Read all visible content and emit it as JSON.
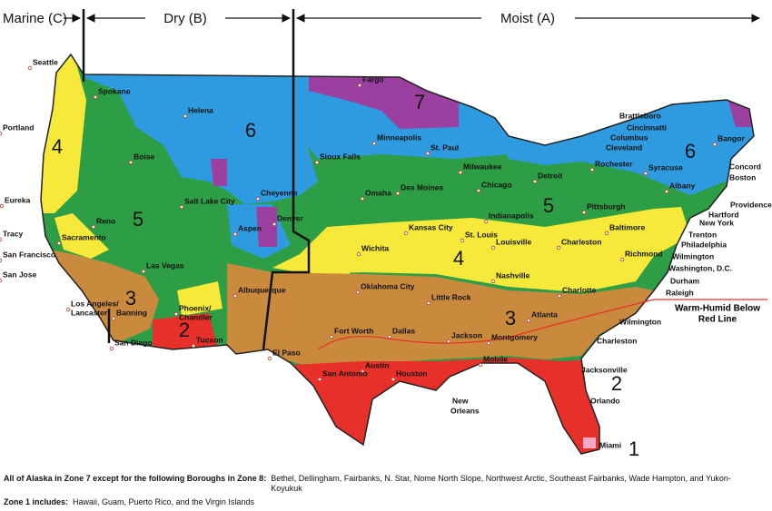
{
  "header": {
    "marine": "Marine (C)",
    "dry": "Dry (B)",
    "moist": "Moist (A)"
  },
  "zone_labels": [
    "7",
    "6",
    "6",
    "5",
    "5",
    "4",
    "4",
    "3",
    "3",
    "2",
    "2",
    "1"
  ],
  "cities": [
    "Seattle",
    "Portland",
    "Eureka",
    "Tracy",
    "San Francisco",
    "San Jose",
    "Sacramento",
    "Reno",
    "Spokane",
    "Helena",
    "Boise",
    "Salt Lake City",
    "Cheyenne",
    "Aspen",
    "Denver",
    "Las Vegas",
    "Los Angeles/",
    "Lancaster",
    "Banning",
    "San Diego",
    "Phoenix/",
    "Chandler",
    "Tucson",
    "Albuquerque",
    "El Paso",
    "Fargo",
    "Minneapolis",
    "St. Paul",
    "Sioux Falls",
    "Omaha",
    "Des Moines",
    "Milwaukee",
    "Chicago",
    "Detroit",
    "Brattleboro",
    "Cincinnatti",
    "Columbus",
    "Cleveland",
    "Rochester",
    "Syracuse",
    "Albany",
    "Bangor",
    "Concord",
    "Boston",
    "Providence",
    "Hartford",
    "New York",
    "Trenton",
    "Philadelphia",
    "Wilmington",
    "Washington, D.C.",
    "Durham",
    "Raleigh",
    "Indianapolis",
    "Pittsburgh",
    "Baltimore",
    "Charleston",
    "Richmond",
    "Louisville",
    "St. Louis",
    "Kansas City",
    "Wichita",
    "Nashville",
    "Charlotte",
    "Oklahoma City",
    "Little Rock",
    "Atlanta",
    "Fort Worth",
    "Dallas",
    "Jackson",
    "Montgomery",
    "Wilmington",
    "Charleston",
    "Mobile",
    "Austin",
    "San Antonio",
    "Houston",
    "New",
    "Orleans",
    "Jacksonville",
    "Orlando",
    "Miami"
  ],
  "red_line_label": [
    "Warm-Humid Below",
    "Red Line"
  ],
  "notes": {
    "alaska_label": "All of Alaska in Zone 7 except for the following Boroughs in Zone 8:",
    "alaska_text": "Bethel, Dellingham, Fairbanks, N. Star, Nome North Slope, Northwest Arctic, Southeast Fairbanks, Wade Hampton, and Yukon-Koyukuk",
    "zone1_label": "Zone 1 includes:",
    "zone1_text": "Hawaii, Guam, Puerto Rico, and the Virgin Islands"
  }
}
